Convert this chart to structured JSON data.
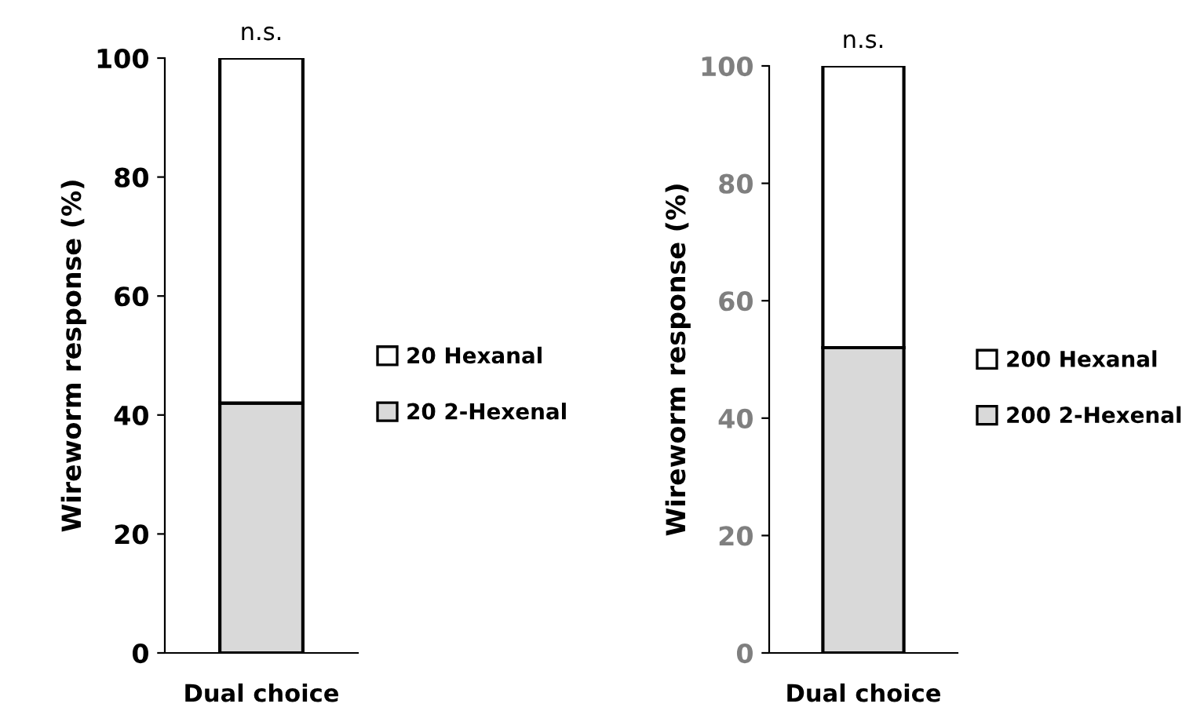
{
  "chart_data": [
    {
      "type": "bar",
      "stacked": true,
      "categories": [
        "Dual choice"
      ],
      "ylabel": "Wireworm response (%)",
      "ylim": [
        0,
        100
      ],
      "yticks": [
        0,
        20,
        40,
        60,
        80,
        100
      ],
      "legend": "right",
      "grid": false,
      "annotations": [
        "n.s."
      ],
      "series": [
        {
          "name": "20 2-Hexenal",
          "color": "#d9d9d9",
          "values": [
            42
          ]
        },
        {
          "name": "20 Hexanal",
          "color": "#ffffff",
          "values": [
            58
          ]
        }
      ]
    },
    {
      "type": "bar",
      "stacked": true,
      "categories": [
        "Dual choice"
      ],
      "ylabel": "Wireworm response (%)",
      "ylim": [
        0,
        100
      ],
      "yticks": [
        0,
        20,
        40,
        60,
        80,
        100
      ],
      "legend": "right",
      "grid": false,
      "annotations": [
        "n.s."
      ],
      "series": [
        {
          "name": "200 2-Hexenal",
          "color": "#d9d9d9",
          "values": [
            52
          ]
        },
        {
          "name": "200 Hexanal",
          "color": "#ffffff",
          "values": [
            48
          ]
        }
      ]
    }
  ]
}
